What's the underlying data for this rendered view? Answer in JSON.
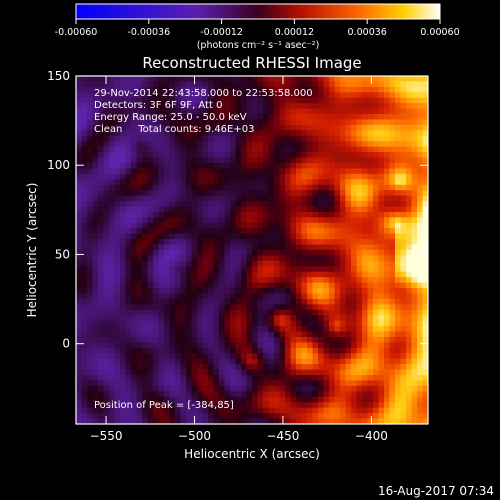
{
  "chart_data": {
    "type": "heatmap",
    "title": "Reconstructed RHESSI Image",
    "xlabel": "Heliocentric X (arcsec)",
    "ylabel": "Heliocentric Y (arcsec)",
    "xlim": [
      -567,
      -368
    ],
    "ylim": [
      -45,
      150
    ],
    "x_ticks": [
      -550,
      -500,
      -450,
      -400
    ],
    "y_ticks": [
      0,
      50,
      100,
      150
    ],
    "annotation_lines": [
      "29-Nov-2014 22:43:58.000 to 22:53:58.000",
      "Detectors: 3F 6F 9F, Att 0",
      "Energy Range: 25.0 - 50.0 keV",
      "Clean     Total counts: 9.46E+03"
    ],
    "peak_label": "Position of Peak = [-384,85]",
    "colorbar": {
      "range": [
        -0.0006,
        0.0006
      ],
      "tick_values": [
        -0.0006,
        -0.00036,
        -0.00012,
        0.00012,
        0.00036,
        0.0006
      ],
      "tick_labels": [
        "-0.00060",
        "-0.00036",
        "-0.00012",
        "0.00012",
        "0.00036",
        "0.00060"
      ],
      "unit_label": "(photons cm⁻² s⁻¹ asec⁻²)"
    },
    "footer_date": "16-Aug-2017 07:34",
    "colormap": "blue-purple-red-yellow-white",
    "grid": false
  }
}
